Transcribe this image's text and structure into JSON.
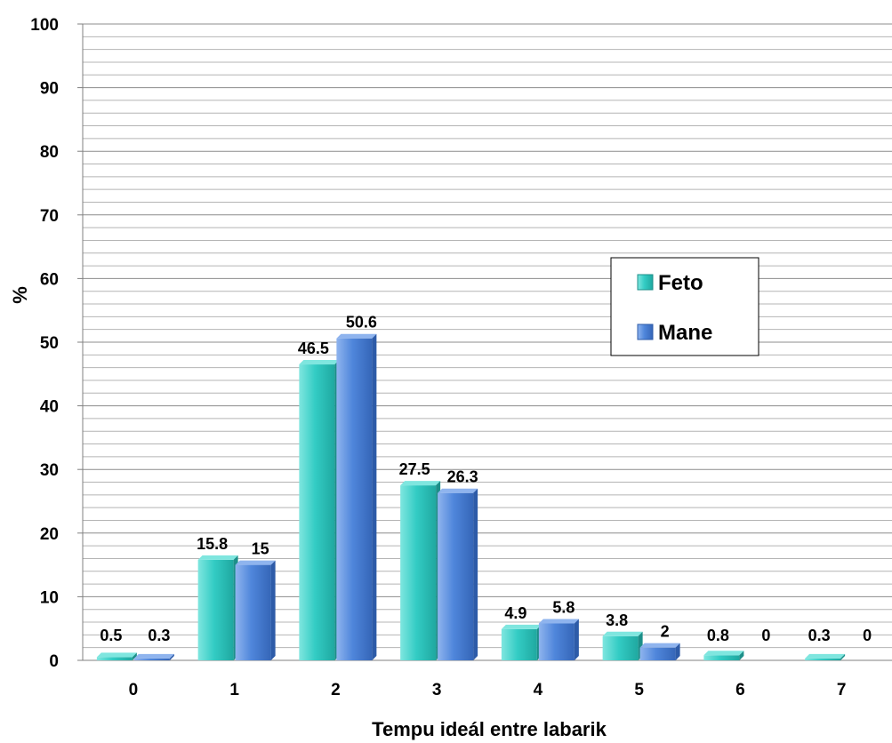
{
  "chart_data": {
    "type": "bar",
    "title": "",
    "xlabel": "Tempu ideál entre labarik",
    "ylabel": "%",
    "ylim": [
      0,
      100
    ],
    "yticks": [
      0,
      10,
      20,
      30,
      40,
      50,
      60,
      70,
      80,
      90,
      100
    ],
    "grid": true,
    "legend_position": "right",
    "categories": [
      "0",
      "1",
      "2",
      "3",
      "4",
      "5",
      "6",
      "7"
    ],
    "series": [
      {
        "name": "Feto",
        "color": "#33CCC4",
        "values": [
          0.5,
          15.8,
          46.5,
          27.5,
          4.9,
          3.8,
          0.8,
          0.3
        ]
      },
      {
        "name": "Mane",
        "color": "#4F86DB",
        "values": [
          0.3,
          15,
          50.6,
          26.3,
          5.8,
          2,
          0,
          0
        ]
      }
    ]
  }
}
